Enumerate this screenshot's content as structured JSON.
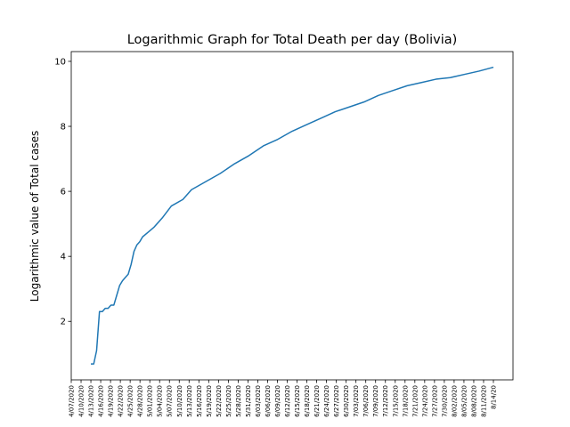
{
  "chart_data": {
    "type": "line",
    "title": "Logarithmic Graph for Total Death per day (Bolivia)",
    "xlabel": "",
    "ylabel": "Logarithmic value of Total cases",
    "yticks": [
      2,
      4,
      6,
      8,
      10
    ],
    "ylim": [
      0.2,
      10.3
    ],
    "grid": false,
    "x_start": "3/29/2020",
    "x_end": "8/14/20",
    "series": [
      {
        "color": "#1f77b4",
        "x": [
          0,
          1,
          2,
          3,
          4,
          5,
          6,
          7,
          8,
          9,
          10,
          11,
          12,
          13,
          14,
          15,
          16,
          17,
          18,
          20,
          22,
          25,
          28,
          32,
          35,
          40,
          45,
          50,
          55,
          60,
          65,
          70,
          75,
          80,
          85,
          90,
          95,
          100,
          105,
          110,
          115,
          120,
          125,
          130,
          135,
          140
        ],
        "values": [
          0.69,
          0.69,
          1.1,
          2.3,
          2.3,
          2.4,
          2.4,
          2.5,
          2.5,
          2.8,
          3.1,
          3.25,
          3.35,
          3.45,
          3.75,
          4.15,
          4.35,
          4.45,
          4.6,
          4.75,
          4.9,
          5.2,
          5.55,
          5.75,
          6.05,
          6.3,
          6.55,
          6.85,
          7.1,
          7.4,
          7.6,
          7.85,
          8.05,
          8.25,
          8.45,
          8.6,
          8.75,
          8.95,
          9.1,
          9.25,
          9.35,
          9.45,
          9.5,
          9.6,
          9.7,
          9.82
        ]
      }
    ],
    "x_tick_labels": [
      "4/07/2020",
      "4/10/2020",
      "4/13/2020",
      "4/16/2020",
      "4/19/2020",
      "4/22/2020",
      "4/25/2020",
      "4/28/2020",
      "5/01/2020",
      "5/04/2020",
      "5/07/2020",
      "5/10/2020",
      "5/13/2020",
      "5/16/2020",
      "5/19/2020",
      "5/22/2020",
      "5/25/2020",
      "5/28/2020",
      "5/31/2020",
      "6/03/2020",
      "6/06/2020",
      "6/09/2020",
      "6/12/2020",
      "6/15/2020",
      "6/18/2020",
      "6/21/2020",
      "6/24/2020",
      "6/27/2020",
      "6/30/2020",
      "7/03/2020",
      "7/06/2020",
      "7/09/2020",
      "7/12/2020",
      "7/15/2020",
      "7/18/2020",
      "7/21/2020",
      "7/24/2020",
      "7/27/2020",
      "7/30/2020",
      "8/02/2020",
      "8/05/2020",
      "8/08/2020",
      "8/11/2020",
      "8/14/20"
    ]
  }
}
